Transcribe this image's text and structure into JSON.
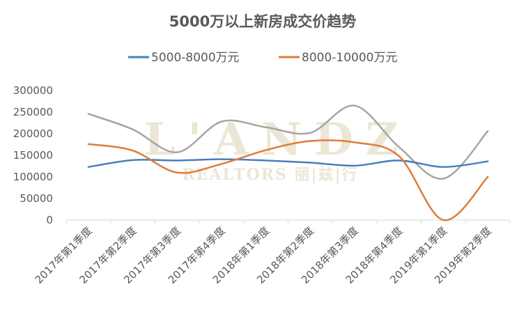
{
  "watermark": {
    "brand": "L'ANDZ",
    "tagline": "REALTORS 丽|兹|行"
  },
  "chart_data": {
    "type": "line",
    "title": "5000万以上新房成交价趋势",
    "legend_position": "top",
    "grid": false,
    "categories": [
      "2017年第1季度",
      "2017年第2季度",
      "2017年第3季度",
      "2017年第4季度",
      "2018年第1季度",
      "2018年第2季度",
      "2018年第3季度",
      "2018年第4季度",
      "2019年第1季度",
      "2019年第2季度"
    ],
    "ylim": [
      0,
      300000
    ],
    "yticks": [
      0,
      50000,
      100000,
      150000,
      200000,
      250000,
      300000
    ],
    "series": [
      {
        "name": "5000-8000万元",
        "color": "#4a7ebb",
        "values": [
          123000,
          139000,
          138000,
          141000,
          138000,
          133000,
          126000,
          138000,
          123000,
          136000
        ]
      },
      {
        "name": "8000-10000万元",
        "color": "#e07b39",
        "values": [
          176000,
          161000,
          110000,
          130000,
          162000,
          183000,
          180000,
          148000,
          0,
          100000
        ]
      },
      {
        "name": "",
        "color": "#a5a5a5",
        "values": [
          246000,
          210000,
          157000,
          228000,
          215000,
          202000,
          265000,
          169000,
          96000,
          206000
        ]
      }
    ]
  }
}
